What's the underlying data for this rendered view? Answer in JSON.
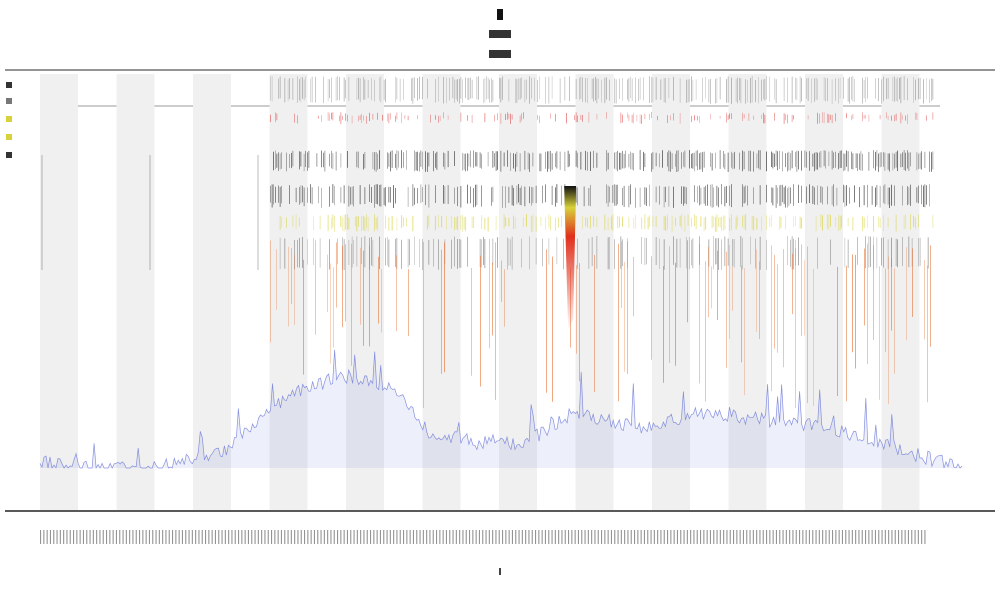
{
  "chart_data": {
    "type": "area",
    "title": "",
    "subtitle": "",
    "xlabel": "",
    "ylabel": "",
    "grid": false,
    "legend": {
      "placement": "top-left",
      "entries": []
    },
    "colors": {
      "signal": "#6c78d8",
      "band": "#f0f0f0",
      "axis": "#333333",
      "spike_orange": "#e8773a",
      "spike_yellow": "#d8d23a",
      "spike_black": "#111111",
      "spike_red": "#e04040",
      "hotspot": "#e0301c"
    },
    "x": {
      "points": 460,
      "start_fraction": 0.0,
      "end_fraction": 1.0
    },
    "coverage_profile": [
      {
        "at": 0.0,
        "level": 0.02
      },
      {
        "at": 0.07,
        "level": 0.0
      },
      {
        "at": 0.12,
        "level": 0.0
      },
      {
        "at": 0.2,
        "level": 0.05
      },
      {
        "at": 0.25,
        "level": 0.19
      },
      {
        "at": 0.28,
        "level": 0.25
      },
      {
        "at": 0.33,
        "level": 0.3
      },
      {
        "at": 0.38,
        "level": 0.26
      },
      {
        "at": 0.42,
        "level": 0.12
      },
      {
        "at": 0.47,
        "level": 0.08
      },
      {
        "at": 0.5,
        "level": 0.09
      },
      {
        "at": 0.52,
        "level": 0.07
      },
      {
        "at": 0.58,
        "level": 0.18
      },
      {
        "at": 0.65,
        "level": 0.13
      },
      {
        "at": 0.72,
        "level": 0.18
      },
      {
        "at": 0.8,
        "level": 0.15
      },
      {
        "at": 0.86,
        "level": 0.13
      },
      {
        "at": 0.92,
        "level": 0.07
      },
      {
        "at": 1.0,
        "level": 0.0
      }
    ],
    "spike_region": {
      "start": 0.25,
      "end": 0.97
    },
    "hotspot": {
      "at": 0.575,
      "level": 1.0
    },
    "bands": {
      "count": 12
    }
  }
}
